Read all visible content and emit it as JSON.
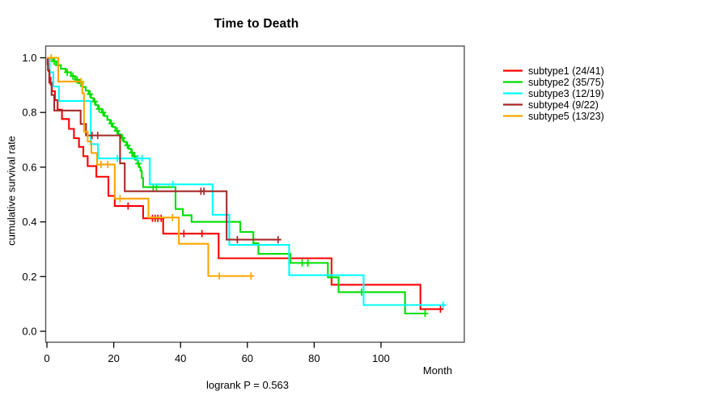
{
  "chart_data": {
    "type": "line",
    "subtype": "kaplan-meier-step",
    "title": "Time to Death",
    "xlabel": "Month",
    "ylabel": "cumulative survival rate",
    "footnote": "logrank P = 0.563",
    "xlim": [
      0,
      125
    ],
    "ylim": [
      0.0,
      1.0
    ],
    "xticks": [
      0,
      20,
      40,
      60,
      80,
      100
    ],
    "ytick_labels": [
      "0.0",
      "0.2",
      "0.4",
      "0.6",
      "0.8",
      "1.0"
    ],
    "grid": false,
    "legend_position": "right-outside",
    "series": [
      {
        "name": "subtype1",
        "label": "subtype1 (24/41)",
        "events": "24/41",
        "color": "#FF0000",
        "steps": [
          [
            0,
            1
          ],
          [
            0.2,
            0.976
          ],
          [
            0.5,
            0.951
          ],
          [
            0.8,
            0.927
          ],
          [
            1.1,
            0.902
          ],
          [
            1.5,
            0.878
          ],
          [
            2.4,
            0.845
          ],
          [
            3.2,
            0.81
          ],
          [
            4.5,
            0.776
          ],
          [
            6.6,
            0.74
          ],
          [
            8.1,
            0.706
          ],
          [
            9.6,
            0.674
          ],
          [
            10.9,
            0.64
          ],
          [
            12.2,
            0.604
          ],
          [
            14.8,
            0.565
          ],
          [
            18.4,
            0.495
          ],
          [
            20.3,
            0.458
          ],
          [
            28.8,
            0.413
          ],
          [
            34.8,
            0.357
          ],
          [
            51.4,
            0.267
          ],
          [
            85.2,
            0.17
          ],
          [
            111.8,
            0.081
          ]
        ],
        "end": 118.4,
        "censors": [
          24.3,
          31.6,
          32.4,
          33.2,
          34.2,
          41,
          46.4,
          117.8
        ]
      },
      {
        "name": "subtype2",
        "label": "subtype2 (35/75)",
        "events": "35/75",
        "color": "#00DD00",
        "steps": [
          [
            0,
            1
          ],
          [
            1.8,
            0.987
          ],
          [
            2.8,
            0.973
          ],
          [
            4.2,
            0.96
          ],
          [
            5.6,
            0.947
          ],
          [
            7.2,
            0.933
          ],
          [
            8.4,
            0.92
          ],
          [
            9.6,
            0.907
          ],
          [
            10.6,
            0.893
          ],
          [
            11.6,
            0.88
          ],
          [
            12.5,
            0.867
          ],
          [
            13.2,
            0.853
          ],
          [
            13.9,
            0.84
          ],
          [
            14.6,
            0.827
          ],
          [
            15.3,
            0.813
          ],
          [
            16.4,
            0.8
          ],
          [
            17.2,
            0.787
          ],
          [
            18.1,
            0.773
          ],
          [
            18.9,
            0.76
          ],
          [
            19.7,
            0.747
          ],
          [
            20.5,
            0.733
          ],
          [
            21.4,
            0.72
          ],
          [
            22.2,
            0.707
          ],
          [
            23,
            0.693
          ],
          [
            23.8,
            0.68
          ],
          [
            24.5,
            0.667
          ],
          [
            25.2,
            0.653
          ],
          [
            25.9,
            0.64
          ],
          [
            26.5,
            0.627
          ],
          [
            27.1,
            0.613
          ],
          [
            27.6,
            0.6
          ],
          [
            28,
            0.587
          ],
          [
            28.4,
            0.56
          ],
          [
            28.8,
            0.527
          ],
          [
            38.5,
            0.447
          ],
          [
            40.7,
            0.424
          ],
          [
            43.3,
            0.4
          ],
          [
            57.9,
            0.363
          ],
          [
            61.8,
            0.322
          ],
          [
            63.3,
            0.283
          ],
          [
            72.9,
            0.25
          ],
          [
            84.1,
            0.197
          ],
          [
            87.3,
            0.143
          ],
          [
            107.2,
            0.065
          ]
        ],
        "end": 113.6,
        "censors": [
          2.2,
          3.4,
          6.1,
          7.8,
          9,
          10.1,
          12.9,
          14.3,
          15.6,
          16.8,
          19.3,
          21,
          22.6,
          24.1,
          25.5,
          26.2,
          27.4,
          31.8,
          32.8,
          76.4,
          78.1,
          94.2,
          113.2
        ]
      },
      {
        "name": "subtype3",
        "label": "subtype3 (12/19)",
        "events": "12/19",
        "color": "#00FFFF",
        "steps": [
          [
            0,
            1
          ],
          [
            0.8,
            0.947
          ],
          [
            1.9,
            0.895
          ],
          [
            3.6,
            0.842
          ],
          [
            13.1,
            0.684
          ],
          [
            15.3,
            0.632
          ],
          [
            30.8,
            0.537
          ],
          [
            49.6,
            0.426
          ],
          [
            54.6,
            0.316
          ],
          [
            72.5,
            0.205
          ],
          [
            94.8,
            0.096
          ]
        ],
        "end": 119.4,
        "censors": [
          21.1,
          27.2,
          28.5,
          37.7,
          118.6
        ]
      },
      {
        "name": "subtype4",
        "label": "subtype4 (9/22)",
        "events": "9/22",
        "color": "#A52A2A",
        "steps": [
          [
            0,
            1
          ],
          [
            0.3,
            0.955
          ],
          [
            0.7,
            0.909
          ],
          [
            1.4,
            0.864
          ],
          [
            2.2,
            0.807
          ],
          [
            10.1,
            0.758
          ],
          [
            11.7,
            0.716
          ],
          [
            21.9,
            0.614
          ],
          [
            23.3,
            0.512
          ],
          [
            53.8,
            0.335
          ]
        ],
        "end": 70,
        "censors": [
          13.5,
          15.2,
          46.1,
          47,
          57,
          69.2
        ]
      },
      {
        "name": "subtype5",
        "label": "subtype5 (13/23)",
        "events": "13/23",
        "color": "#FFA500",
        "steps": [
          [
            0,
            1
          ],
          [
            3.4,
            0.913
          ],
          [
            10.6,
            0.87
          ],
          [
            11.1,
            0.73
          ],
          [
            12.2,
            0.694
          ],
          [
            13.3,
            0.652
          ],
          [
            15,
            0.61
          ],
          [
            20.3,
            0.485
          ],
          [
            30.4,
            0.416
          ],
          [
            39.5,
            0.32
          ],
          [
            48.3,
            0.202
          ]
        ],
        "end": 61.6,
        "censors": [
          1.3,
          10.2,
          16.2,
          18.2,
          21.9,
          37.6,
          51.6,
          61.1
        ]
      }
    ]
  }
}
